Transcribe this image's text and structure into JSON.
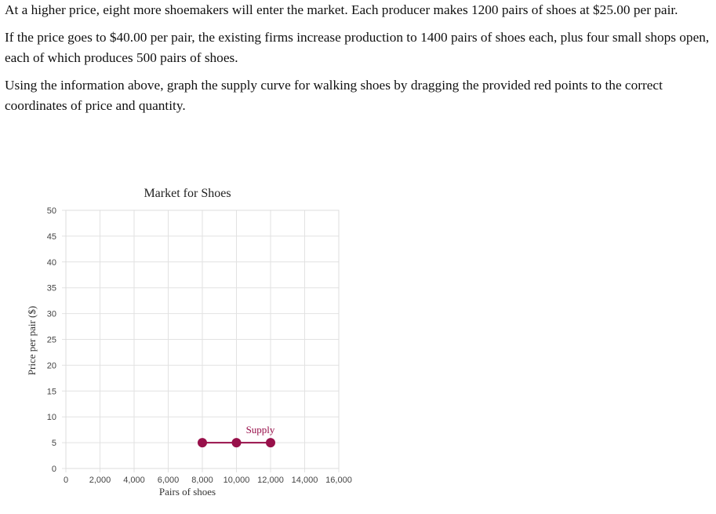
{
  "question": {
    "paragraphs": [
      "At a higher price, eight more shoemakers will enter the market. Each producer makes 1200 pairs of shoes at $25.00 per pair.",
      "If the price goes to $40.00 per pair, the existing firms increase production to 1400 pairs of shoes each, plus four small shops open, each of which produces 500 pairs of shoes.",
      "Using the information above, graph the supply curve for walking shoes by dragging the provided red points to the correct coordinates of price and quantity."
    ]
  },
  "chart_data": {
    "type": "line",
    "title": "Market for Shoes",
    "xlabel": "Pairs of shoes",
    "ylabel": "Price per pair ($)",
    "xlim": [
      0,
      16000
    ],
    "ylim": [
      0,
      50
    ],
    "x_ticks": [
      0,
      2000,
      4000,
      6000,
      8000,
      10000,
      12000,
      14000,
      16000
    ],
    "x_tick_labels": [
      "0",
      "2,000",
      "4,000",
      "6,000",
      "8,000",
      "10,000",
      "12,000",
      "14,000",
      "16,000"
    ],
    "y_ticks": [
      0,
      5,
      10,
      15,
      20,
      25,
      30,
      35,
      40,
      45,
      50
    ],
    "y_tick_labels": [
      "0",
      "5",
      "10",
      "15",
      "20",
      "25",
      "30",
      "35",
      "40",
      "45",
      "50"
    ],
    "grid": true,
    "series": [
      {
        "name": "Supply",
        "color": "#98104a",
        "points": [
          {
            "x": 8000,
            "y": 5
          },
          {
            "x": 10000,
            "y": 5
          },
          {
            "x": 12000,
            "y": 5
          }
        ]
      }
    ]
  }
}
